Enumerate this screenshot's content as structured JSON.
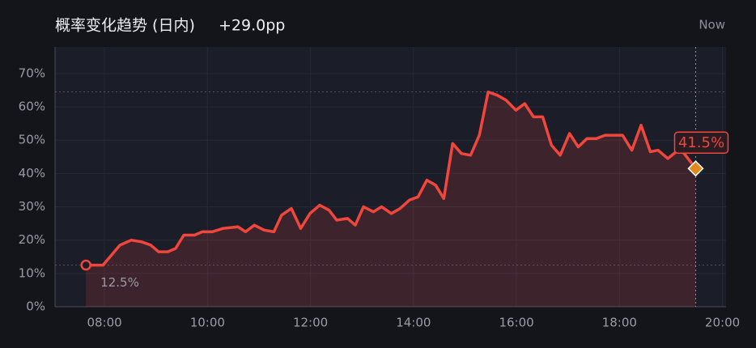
{
  "chart_data": {
    "type": "line",
    "title": "概率变化趋势 (日内)",
    "change": "+29.0pp",
    "now_label": "Now",
    "x": [
      7.64,
      7.97,
      8.3,
      8.52,
      8.72,
      8.9,
      9.05,
      9.23,
      9.38,
      9.54,
      9.75,
      9.9,
      10.09,
      10.3,
      10.59,
      10.74,
      10.91,
      11.1,
      11.29,
      11.44,
      11.63,
      11.81,
      11.99,
      12.18,
      12.36,
      12.51,
      12.72,
      12.87,
      13.03,
      13.22,
      13.38,
      13.57,
      13.74,
      13.92,
      14.09,
      14.26,
      14.43,
      14.59,
      14.76,
      14.93,
      15.11,
      15.28,
      15.45,
      15.63,
      15.8,
      15.99,
      16.16,
      16.33,
      16.51,
      16.68,
      16.85,
      17.03,
      17.2,
      17.37,
      17.55,
      17.72,
      17.89,
      18.06,
      18.24,
      18.42,
      18.6,
      18.75,
      18.94,
      19.18,
      19.48
    ],
    "series": [
      {
        "name": "Probability",
        "color": "#f0463c",
        "values": [
          12.5,
          12.5,
          18.5,
          20,
          19.5,
          18.5,
          16.5,
          16.5,
          17.5,
          21.5,
          21.5,
          22.5,
          22.5,
          23.5,
          24,
          22.5,
          24.5,
          23,
          22.5,
          27.5,
          29.5,
          23.5,
          28,
          30.5,
          29,
          26,
          26.5,
          24.5,
          30,
          28.5,
          30,
          28,
          29.5,
          32,
          33,
          38,
          36.5,
          32.5,
          49,
          46,
          45.5,
          51.5,
          64.5,
          63.5,
          62,
          59,
          61,
          57,
          57,
          48.5,
          45.5,
          52,
          48,
          50.5,
          50.5,
          51.5,
          51.5,
          51.5,
          47,
          54.5,
          46.5,
          47,
          44.5,
          47.5,
          41.5
        ],
        "value_labels": [
          "12.5%",
          null,
          null,
          null,
          null,
          null,
          null,
          null,
          null,
          null,
          null,
          null,
          null,
          null,
          null,
          null,
          null,
          null,
          null,
          null,
          null,
          null,
          null,
          null,
          null,
          null,
          null,
          null,
          null,
          null,
          null,
          null,
          null,
          null,
          null,
          null,
          null,
          null,
          null,
          null,
          null,
          null,
          null,
          null,
          null,
          null,
          null,
          null,
          null,
          null,
          null,
          null,
          null,
          null,
          null,
          null,
          null,
          null,
          null,
          null,
          null,
          null,
          null,
          null,
          "41.5%"
        ]
      }
    ],
    "hlines": [
      12.5,
      64.5
    ],
    "now_x": 19.48,
    "now_color": "#e08a1e",
    "xlim": [
      7.04,
      20.07
    ],
    "ylim": [
      0,
      78
    ],
    "xticks": [
      {
        "value": 8,
        "label": "08:00"
      },
      {
        "value": 10,
        "label": "10:00"
      },
      {
        "value": 12,
        "label": "12:00"
      },
      {
        "value": 14,
        "label": "14:00"
      },
      {
        "value": 16,
        "label": "16:00"
      },
      {
        "value": 18,
        "label": "18:00"
      },
      {
        "value": 20,
        "label": "20:00"
      }
    ],
    "yticks": [
      {
        "value": 0,
        "label": "0%"
      },
      {
        "value": 10,
        "label": "10%"
      },
      {
        "value": 20,
        "label": "20%"
      },
      {
        "value": 30,
        "label": "30%"
      },
      {
        "value": 40,
        "label": "40%"
      },
      {
        "value": 50,
        "label": "50%"
      },
      {
        "value": 60,
        "label": "60%"
      },
      {
        "value": 70,
        "label": "70%"
      }
    ],
    "grid": true
  }
}
